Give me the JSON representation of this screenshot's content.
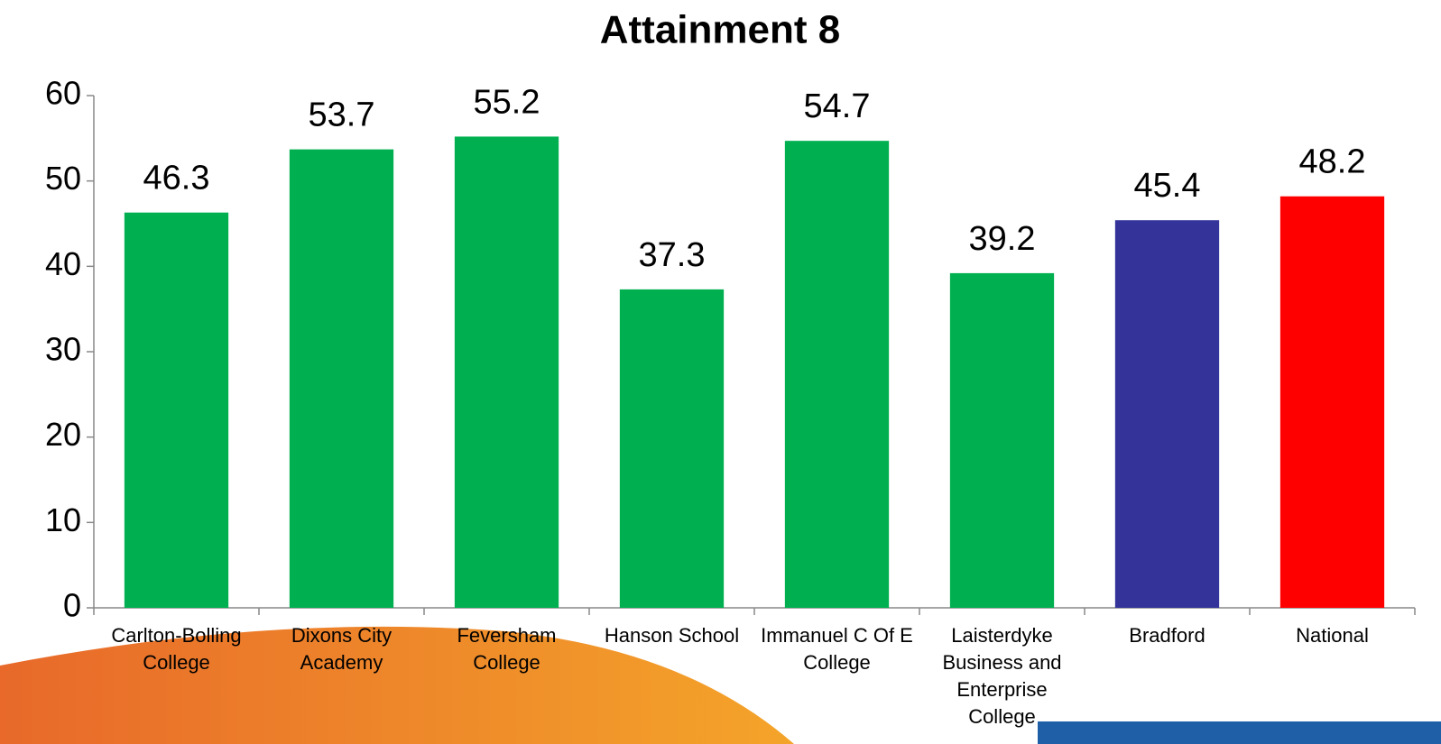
{
  "chart_data": {
    "type": "bar",
    "title": "Attainment 8",
    "categories": [
      "Carlton-Bolling College",
      "Dixons City Academy",
      "Feversham College",
      "Hanson School",
      "Immanuel C Of E College",
      "Laisterdyke Business and Enterprise College",
      "Bradford",
      "National"
    ],
    "values": [
      46.3,
      53.7,
      55.2,
      37.3,
      54.7,
      39.2,
      45.4,
      48.2
    ],
    "colors": [
      "#00b050",
      "#00b050",
      "#00b050",
      "#00b050",
      "#00b050",
      "#00b050",
      "#333399",
      "#ff0000"
    ],
    "ylim": [
      0,
      60
    ],
    "yticks": [
      0,
      10,
      20,
      30,
      40,
      50,
      60
    ],
    "grid": false
  }
}
